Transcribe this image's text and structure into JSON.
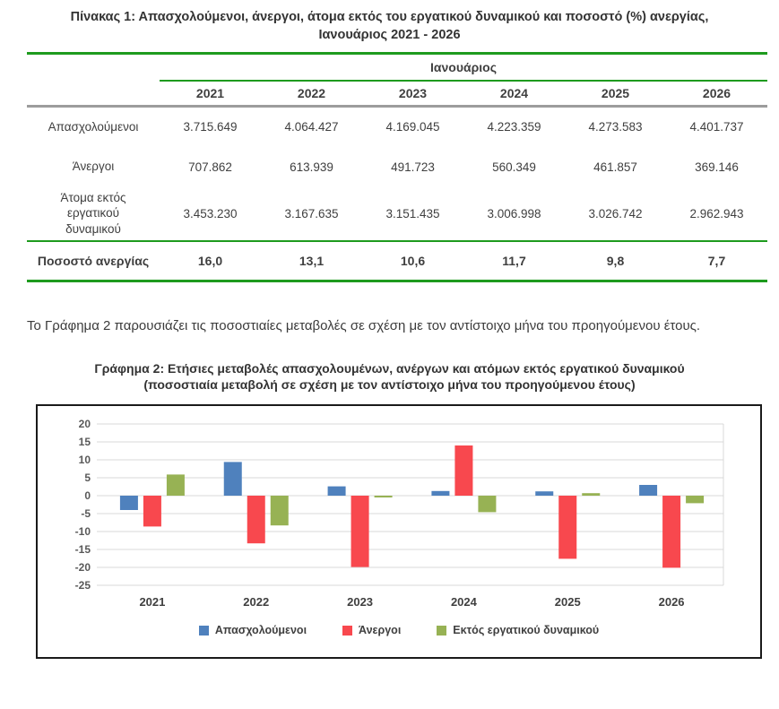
{
  "page": {
    "table_title_line1": "Πίνακας 1: Απασχολούμενοι, άνεργοι, άτομα εκτός του εργατικού δυναμικού και ποσοστό (%) ανεργίας,",
    "table_title_line2": "Ιανουάριος 2021 - 2026"
  },
  "table": {
    "group_header": "Ιανουάριος",
    "years": [
      "2021",
      "2022",
      "2023",
      "2024",
      "2025",
      "2026"
    ],
    "rows": [
      {
        "label": "Απασχολούμενοι",
        "values": [
          "3.715.649",
          "4.064.427",
          "4.169.045",
          "4.223.359",
          "4.273.583",
          "4.401.737"
        ]
      },
      {
        "label": "Άνεργοι",
        "values": [
          "707.862",
          "613.939",
          "491.723",
          "560.349",
          "461.857",
          "369.146"
        ]
      },
      {
        "label": "Άτομα εκτός\nεργατικού\nδυναμικού",
        "values": [
          "3.453.230",
          "3.167.635",
          "3.151.435",
          "3.006.998",
          "3.026.742",
          "2.962.943"
        ]
      }
    ],
    "footer_row": {
      "label": "Ποσοστό ανεργίας",
      "values": [
        "16,0",
        "13,1",
        "10,6",
        "11,7",
        "9,8",
        "7,7"
      ]
    }
  },
  "paragraph": "Το Γράφημα 2 παρουσιάζει τις ποσοστιαίες μεταβολές σε σχέση με τον αντίστοιχο μήνα του προηγούμενου έτους.",
  "chart": {
    "title_line1": "Γράφημα 2: Ετήσιες μεταβολές απασχολουμένων, ανέργων και ατόμων εκτός εργατικού δυναμικού",
    "title_line2": "(ποσοστιαία μεταβολή σε σχέση με τον αντίστοιχο μήνα του προηγούμενου έτους)"
  },
  "chart_data": {
    "type": "bar",
    "categories": [
      "2021",
      "2022",
      "2023",
      "2024",
      "2025",
      "2026"
    ],
    "series": [
      {
        "name": "Απασχολούμενοι",
        "color": "#4F81BD",
        "values": [
          -4.0,
          9.4,
          2.6,
          1.3,
          1.2,
          3.0
        ]
      },
      {
        "name": "Άνεργοι",
        "color": "#F8484E",
        "values": [
          -8.6,
          -13.3,
          -19.9,
          14.0,
          -17.6,
          -20.1
        ]
      },
      {
        "name": "Εκτός εργατικού δυναμικού",
        "color": "#97B254",
        "values": [
          5.9,
          -8.3,
          -0.5,
          -4.6,
          0.7,
          -2.1
        ]
      }
    ],
    "title": "Ετήσιες μεταβολές απασχολουμένων, ανέργων και ατόμων εκτός εργατικού δυναμικού",
    "xlabel": "",
    "ylabel": "",
    "ylim": [
      -25,
      20
    ],
    "yticks": [
      20,
      15,
      10,
      5,
      0,
      -5,
      -10,
      -15,
      -20,
      -25
    ],
    "grid": true,
    "legend_position": "bottom"
  },
  "colors": {
    "rule_green": "#1e9b1e",
    "rule_gray": "#9c9c9c",
    "gridline": "#d9d9d9",
    "axis_text": "#595959",
    "body_text": "#3f3f3f"
  }
}
